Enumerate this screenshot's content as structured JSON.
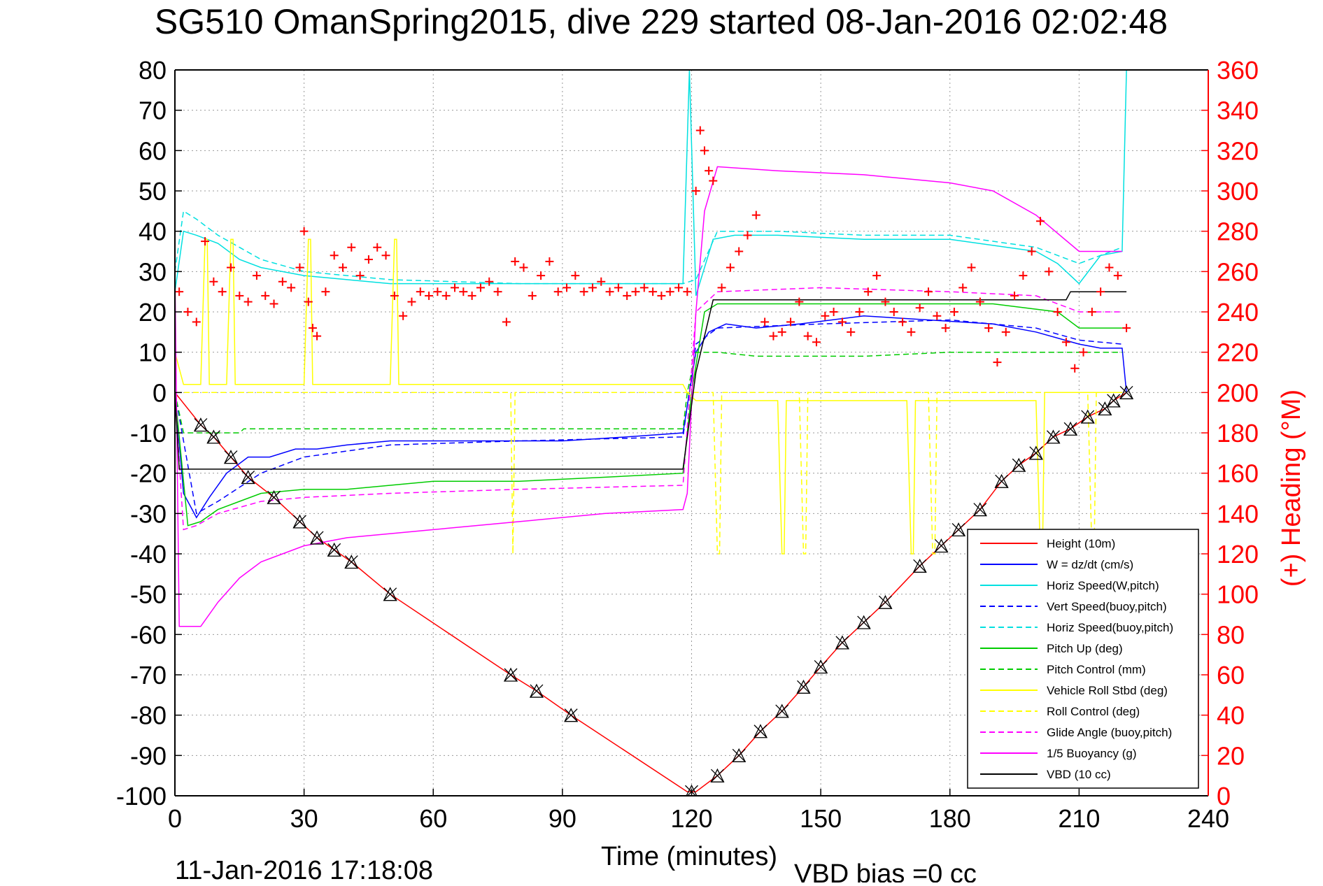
{
  "chart_data": {
    "type": "line",
    "title": "SG510 OmanSpring2015, dive 229 started 08-Jan-2016 02:02:48",
    "xlabel": "Time (minutes)",
    "ylabel": "",
    "y2label": "(+) Heading (°M)",
    "footer_left": "11-Jan-2016 17:18:08",
    "footer_right": "VBD bias =0 cc",
    "xlim": [
      0,
      240
    ],
    "ylim": [
      -100,
      80
    ],
    "y2lim": [
      0,
      360
    ],
    "xticks": [
      "0",
      "30",
      "60",
      "90",
      "120",
      "150",
      "180",
      "210",
      "240"
    ],
    "yticks": [
      "80",
      "70",
      "60",
      "50",
      "40",
      "30",
      "20",
      "10",
      "0",
      "-10",
      "-20",
      "-30",
      "-40",
      "-50",
      "-60",
      "-70",
      "-80",
      "-90",
      "-100"
    ],
    "y2ticks": [
      "360",
      "340",
      "320",
      "300",
      "280",
      "260",
      "240",
      "220",
      "200",
      "180",
      "160",
      "140",
      "120",
      "100",
      "80",
      "60",
      "40",
      "20",
      "0"
    ],
    "grid": true,
    "legend_position": "bottom-right",
    "colors": {
      "axis": "#000000",
      "grid": "#999999",
      "heading_axis": "#ff0000",
      "heading_markers": "#ff0000",
      "depth_markers": "#000000"
    },
    "series": [
      {
        "name": "Height (10m)",
        "color": "#ff0000",
        "style": "solid",
        "x": [
          0,
          6,
          9,
          13,
          17,
          23,
          29,
          33,
          37,
          41,
          50,
          78,
          84,
          92,
          119,
          121,
          126,
          131,
          136,
          141,
          146,
          150,
          155,
          160,
          165,
          173,
          178,
          182,
          187,
          192,
          196,
          200,
          204,
          208,
          212,
          216,
          218,
          221
        ],
        "y": [
          0,
          -8,
          -11,
          -16,
          -21,
          -26,
          -32,
          -36,
          -39,
          -42,
          -50,
          -70,
          -74,
          -80,
          -99,
          -99,
          -95,
          -90,
          -84,
          -79,
          -73,
          -68,
          -62,
          -57,
          -52,
          -43,
          -38,
          -34,
          -29,
          -22,
          -18,
          -15,
          -11,
          -9,
          -6,
          -4,
          -2,
          0
        ]
      },
      {
        "name": "W = dz/dt (cm/s)",
        "color": "#0000ff",
        "style": "solid",
        "x": [
          0,
          2,
          5,
          8,
          12,
          17,
          22,
          28,
          33,
          40,
          50,
          60,
          75,
          90,
          105,
          118,
          119.5,
          121,
          124,
          128,
          135,
          145,
          160,
          175,
          190,
          200,
          210,
          215,
          220,
          221
        ],
        "y": [
          0,
          -25,
          -31,
          -26,
          -20,
          -16,
          -16,
          -14,
          -14,
          -13,
          -12,
          -12,
          -12,
          -12,
          -11,
          -10,
          0,
          10,
          15,
          17,
          16,
          17,
          19,
          18,
          17,
          15,
          12,
          11,
          11,
          0
        ]
      },
      {
        "name": "Horiz Speed(W,pitch)",
        "color": "#00e0e0",
        "style": "solid",
        "x": [
          0,
          2,
          5,
          10,
          15,
          20,
          30,
          40,
          50,
          60,
          80,
          100,
          118,
          119.5,
          121,
          125,
          130,
          140,
          160,
          180,
          200,
          205,
          210,
          215,
          220,
          221
        ],
        "y": [
          25,
          40,
          39,
          37,
          33,
          31,
          29,
          28,
          27,
          27,
          27,
          27,
          27,
          80,
          24,
          38,
          39,
          39,
          38,
          38,
          35,
          32,
          27,
          34,
          35,
          80
        ]
      },
      {
        "name": "Vert Speed(buoy,pitch)",
        "color": "#0000ff",
        "style": "dashed",
        "x": [
          0,
          5,
          10,
          20,
          30,
          50,
          80,
          118,
          121,
          126,
          150,
          180,
          200,
          210,
          220
        ],
        "y": [
          0,
          -30,
          -27,
          -20,
          -16,
          -13,
          -12,
          -11,
          12,
          16,
          17,
          18,
          16,
          13,
          12
        ]
      },
      {
        "name": "Horiz Speed(buoy,pitch)",
        "color": "#00e0e0",
        "style": "dashed",
        "x": [
          0,
          2,
          5,
          10,
          15,
          20,
          30,
          40,
          50,
          80,
          118,
          121,
          126,
          140,
          160,
          180,
          200,
          210,
          220
        ],
        "y": [
          30,
          45,
          43,
          39,
          36,
          33,
          30,
          29,
          28,
          27,
          27,
          28,
          40,
          40,
          39,
          39,
          36,
          32,
          36
        ]
      },
      {
        "name": "Pitch Up (deg)",
        "color": "#00cc00",
        "style": "solid",
        "x": [
          0,
          3,
          6,
          10,
          15,
          20,
          30,
          40,
          50,
          60,
          80,
          100,
          118,
          120,
          123,
          126,
          130,
          150,
          170,
          190,
          205,
          210,
          220
        ],
        "y": [
          0,
          -33,
          -32,
          -29,
          -27,
          -25,
          -24,
          -24,
          -23,
          -22,
          -22,
          -21,
          -20,
          0,
          20,
          22,
          22,
          22,
          22,
          22,
          20,
          16,
          16
        ]
      },
      {
        "name": "Pitch Control (mm)",
        "color": "#00cc00",
        "style": "dashed",
        "x": [
          0,
          2,
          5,
          15,
          16,
          118,
          119,
          121,
          126,
          135,
          160,
          180,
          200,
          210,
          220
        ],
        "y": [
          0,
          -10,
          -10,
          -10,
          -9,
          -9,
          0,
          10,
          10,
          9,
          9,
          10,
          10,
          10,
          10
        ]
      },
      {
        "name": "Vehicle Roll Stbd (deg)",
        "color": "#ffff00",
        "style": "solid",
        "x": [
          0,
          2,
          6,
          7,
          7.5,
          8,
          12,
          13,
          13.5,
          14,
          30,
          31,
          31.5,
          32,
          50,
          51,
          51.5,
          52,
          70,
          100,
          118,
          119,
          121,
          122,
          140,
          141,
          141.5,
          142,
          170,
          171,
          171.5,
          172,
          200,
          201,
          201.5,
          202,
          220
        ],
        "y": [
          10,
          2,
          2,
          38,
          38,
          2,
          2,
          38,
          38,
          2,
          2,
          38,
          38,
          2,
          2,
          38,
          38,
          2,
          2,
          2,
          2,
          0,
          -2,
          -2,
          -2,
          -40,
          -40,
          -2,
          -2,
          -40,
          -40,
          -2,
          -2,
          -40,
          -40,
          0,
          0
        ]
      },
      {
        "name": "Roll Control (deg)",
        "color": "#ffff00",
        "style": "dashed",
        "x": [
          0,
          5,
          78,
          78.5,
          79,
          119,
          121,
          125,
          126,
          126.5,
          127,
          145,
          146,
          146.5,
          147,
          175,
          176,
          176.5,
          177,
          212,
          213,
          213.5,
          214,
          220
        ],
        "y": [
          0,
          0,
          0,
          -40,
          0,
          0,
          0,
          0,
          -40,
          -40,
          0,
          0,
          -40,
          -40,
          0,
          0,
          -40,
          -40,
          0,
          0,
          -40,
          -40,
          0,
          0
        ]
      },
      {
        "name": "Glide Angle (buoy,pitch)",
        "color": "#ff00ff",
        "style": "dashed",
        "x": [
          0,
          2,
          5,
          10,
          20,
          30,
          50,
          80,
          118,
          121,
          126,
          150,
          180,
          200,
          210,
          220
        ],
        "y": [
          0,
          -34,
          -33,
          -30,
          -27,
          -26,
          -25,
          -24,
          -23,
          20,
          25,
          26,
          25,
          24,
          20,
          20
        ]
      },
      {
        "name": "1/5 Buoyancy (g)",
        "color": "#ff00ff",
        "style": "solid",
        "x": [
          0,
          1,
          6,
          10,
          15,
          20,
          25,
          30,
          40,
          60,
          80,
          100,
          118,
          119,
          121,
          123,
          126,
          140,
          160,
          180,
          190,
          200,
          210,
          220
        ],
        "y": [
          30,
          -58,
          -58,
          -52,
          -46,
          -42,
          -40,
          -38,
          -36,
          -34,
          -32,
          -30,
          -29,
          -25,
          20,
          45,
          56,
          55,
          54,
          52,
          50,
          44,
          35,
          35
        ]
      },
      {
        "name": "VBD (10 cc)",
        "color": "#000000",
        "style": "solid",
        "x": [
          0,
          1,
          118,
          121,
          125,
          207,
          208,
          221
        ],
        "y": [
          0,
          -19,
          -19,
          5,
          23,
          23,
          25,
          25
        ]
      }
    ],
    "heading_series": {
      "name": "(+) Heading (°M)",
      "color": "#ff0000",
      "axis": "y2",
      "x": [
        1,
        3,
        5,
        7,
        9,
        11,
        13,
        15,
        17,
        19,
        21,
        23,
        25,
        27,
        29,
        30,
        31,
        32,
        33,
        35,
        37,
        39,
        41,
        43,
        45,
        47,
        49,
        51,
        53,
        55,
        57,
        59,
        61,
        63,
        65,
        67,
        69,
        71,
        73,
        75,
        77,
        79,
        81,
        83,
        85,
        87,
        89,
        91,
        93,
        95,
        97,
        99,
        101,
        103,
        105,
        107,
        109,
        111,
        113,
        115,
        117,
        119,
        121,
        122,
        123,
        124,
        125,
        127,
        129,
        131,
        133,
        135,
        137,
        139,
        141,
        143,
        145,
        147,
        149,
        151,
        153,
        155,
        157,
        159,
        161,
        163,
        165,
        167,
        169,
        171,
        173,
        175,
        177,
        179,
        181,
        183,
        185,
        187,
        189,
        191,
        193,
        195,
        197,
        199,
        201,
        203,
        205,
        207,
        209,
        211,
        213,
        215,
        217,
        219,
        221
      ],
      "y": [
        250,
        240,
        235,
        275,
        255,
        250,
        262,
        248,
        245,
        258,
        248,
        244,
        255,
        252,
        262,
        280,
        245,
        232,
        228,
        250,
        268,
        262,
        272,
        258,
        266,
        272,
        268,
        248,
        238,
        245,
        250,
        248,
        250,
        248,
        252,
        250,
        248,
        252,
        255,
        250,
        235,
        265,
        262,
        248,
        258,
        265,
        250,
        252,
        258,
        250,
        252,
        255,
        250,
        252,
        248,
        250,
        252,
        250,
        248,
        250,
        252,
        250,
        300,
        330,
        320,
        310,
        305,
        252,
        262,
        270,
        278,
        288,
        235,
        228,
        230,
        235,
        245,
        228,
        225,
        238,
        240,
        235,
        230,
        240,
        250,
        258,
        245,
        240,
        235,
        230,
        242,
        250,
        238,
        232,
        240,
        252,
        262,
        245,
        232,
        215,
        230,
        248,
        258,
        270,
        285,
        260,
        240,
        225,
        212,
        220,
        240,
        250,
        262,
        258,
        232
      ]
    },
    "depth_markers": {
      "x": [
        6,
        9,
        13,
        17,
        23,
        29,
        33,
        37,
        41,
        50,
        78,
        84,
        92,
        120,
        126,
        131,
        136,
        141,
        146,
        150,
        155,
        160,
        165,
        173,
        178,
        182,
        187,
        192,
        196,
        200,
        204,
        208,
        212,
        216,
        218,
        221
      ],
      "y": [
        -8,
        -11,
        -16,
        -21,
        -26,
        -32,
        -36,
        -39,
        -42,
        -50,
        -70,
        -74,
        -80,
        -99,
        -95,
        -90,
        -84,
        -79,
        -73,
        -68,
        -62,
        -57,
        -52,
        -43,
        -38,
        -34,
        -29,
        -22,
        -18,
        -15,
        -11,
        -9,
        -6,
        -4,
        -2,
        0
      ]
    }
  }
}
